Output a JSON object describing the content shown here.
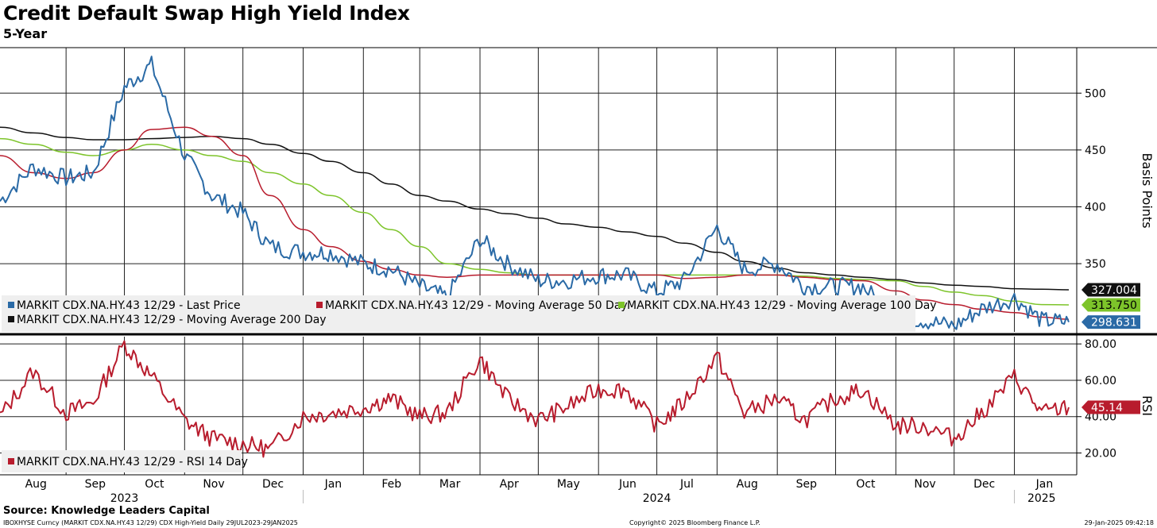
{
  "title": "Credit Default Swap High Yield Index",
  "subtitle": "5-Year",
  "source": "Source: Knowledge Leaders Capital",
  "footer": {
    "ticker": "IBOXHYSE Curncy (MARKIT CDX.NA.HY.43 12/29) CDX High-Yield  Daily 29JUL2023-29JAN2025",
    "copyright": "Copyright© 2025 Bloomberg Finance L.P.",
    "timestamp": "29-Jan-2025 09:42:18"
  },
  "colors": {
    "last_price": "#2a6aa6",
    "ma50": "#b81c2d",
    "ma100": "#7dc42a",
    "ma200": "#111111",
    "rsi": "#b81c2d",
    "grid": "#222222"
  },
  "chart_data": [
    {
      "type": "line",
      "ylabel": "Basis Points",
      "ylim": [
        290,
        540
      ],
      "yticks": [
        350,
        400,
        450,
        500
      ],
      "grid": true,
      "legend_position": "bottom-left",
      "x_months": [
        "Aug",
        "Sep",
        "Oct",
        "Nov",
        "Dec",
        "Jan",
        "Feb",
        "Mar",
        "Apr",
        "May",
        "Jun",
        "Jul",
        "Aug",
        "Sep",
        "Oct",
        "Nov",
        "Dec",
        "Jan"
      ],
      "x_years": [
        "2023",
        "2024",
        "2025"
      ],
      "x": [
        "2023-07-29",
        "2023-08-15",
        "2023-09-01",
        "2023-09-15",
        "2023-10-01",
        "2023-10-15",
        "2023-11-01",
        "2023-11-15",
        "2023-12-01",
        "2023-12-15",
        "2024-01-01",
        "2024-01-15",
        "2024-02-01",
        "2024-02-15",
        "2024-03-01",
        "2024-03-15",
        "2024-04-01",
        "2024-04-15",
        "2024-05-01",
        "2024-05-15",
        "2024-06-01",
        "2024-06-15",
        "2024-07-01",
        "2024-07-15",
        "2024-08-01",
        "2024-08-15",
        "2024-09-01",
        "2024-09-15",
        "2024-10-01",
        "2024-10-15",
        "2024-11-01",
        "2024-11-15",
        "2024-12-01",
        "2024-12-15",
        "2025-01-01",
        "2025-01-15",
        "2025-01-29"
      ],
      "series": [
        {
          "name": "MARKIT CDX.NA.HY.43 12/29 - Last Price",
          "color": "#2a6aa6",
          "values": [
            405,
            435,
            425,
            430,
            505,
            525,
            445,
            410,
            395,
            365,
            360,
            360,
            350,
            345,
            330,
            320,
            372,
            350,
            335,
            335,
            340,
            340,
            325,
            335,
            382,
            345,
            350,
            330,
            330,
            330,
            303,
            300,
            295,
            310,
            320,
            300,
            298.631
          ]
        },
        {
          "name": "MARKIT CDX.NA.HY.43 12/29 - Moving Average 50 Day",
          "color": "#b81c2d",
          "values": [
            445,
            430,
            425,
            430,
            450,
            468,
            470,
            462,
            445,
            410,
            380,
            365,
            352,
            345,
            340,
            338,
            340,
            340,
            340,
            340,
            340,
            340,
            340,
            337,
            338,
            340,
            340,
            338,
            336,
            335,
            326,
            318,
            314,
            310,
            307,
            303,
            301
          ]
        },
        {
          "name": "MARKIT CDX.NA.HY.43 12/29 - Moving Average 100 Day",
          "color": "#7dc42a",
          "values": [
            460,
            455,
            448,
            445,
            450,
            455,
            450,
            445,
            440,
            430,
            420,
            410,
            395,
            380,
            365,
            350,
            345,
            342,
            340,
            340,
            340,
            340,
            340,
            340,
            340,
            340,
            340,
            339,
            337,
            336,
            335,
            330,
            325,
            322,
            317,
            314,
            313.75
          ]
        },
        {
          "name": "MARKIT CDX.NA.HY.43 12/29 - Moving Average 200 Day",
          "color": "#111111",
          "values": [
            470,
            465,
            461,
            459,
            459,
            460,
            461,
            462,
            460,
            455,
            447,
            440,
            430,
            420,
            410,
            405,
            398,
            394,
            390,
            385,
            382,
            378,
            374,
            368,
            360,
            352,
            346,
            342,
            340,
            338,
            336,
            333,
            331,
            330,
            328,
            327.5,
            327.004
          ]
        }
      ],
      "last_labels": [
        {
          "series": 3,
          "text": "327.004"
        },
        {
          "series": 2,
          "text": "313.750"
        },
        {
          "series": 0,
          "text": "298.631"
        }
      ]
    },
    {
      "type": "line",
      "ylabel": "RSI",
      "ylim": [
        8,
        84
      ],
      "yticks": [
        20,
        40,
        60,
        80
      ],
      "ytick_labels": [
        "20.00",
        "40.00",
        "60.00",
        "80.00"
      ],
      "grid": true,
      "legend_position": "bottom-left",
      "x": [
        "2023-07-29",
        "2023-08-15",
        "2023-09-01",
        "2023-09-15",
        "2023-10-01",
        "2023-10-15",
        "2023-11-01",
        "2023-11-15",
        "2023-12-01",
        "2023-12-15",
        "2024-01-01",
        "2024-01-15",
        "2024-02-01",
        "2024-02-15",
        "2024-03-01",
        "2024-03-15",
        "2024-04-01",
        "2024-04-15",
        "2024-05-01",
        "2024-05-15",
        "2024-06-01",
        "2024-06-15",
        "2024-07-01",
        "2024-07-15",
        "2024-08-01",
        "2024-08-15",
        "2024-09-01",
        "2024-09-15",
        "2024-10-01",
        "2024-10-15",
        "2024-11-01",
        "2024-11-15",
        "2024-12-01",
        "2024-12-15",
        "2025-01-01",
        "2025-01-15",
        "2025-01-29"
      ],
      "series": [
        {
          "name": "MARKIT CDX.NA.HY.43 12/29 - RSI 14 Day",
          "color": "#b81c2d",
          "values": [
            40,
            65,
            42,
            48,
            80,
            62,
            38,
            28,
            25,
            22,
            40,
            42,
            45,
            50,
            40,
            42,
            72,
            50,
            38,
            45,
            55,
            55,
            35,
            48,
            73,
            42,
            50,
            38,
            50,
            55,
            35,
            35,
            28,
            42,
            62,
            42,
            45.14
          ]
        }
      ],
      "last_labels": [
        {
          "series": 0,
          "text": "45.14"
        }
      ]
    }
  ]
}
